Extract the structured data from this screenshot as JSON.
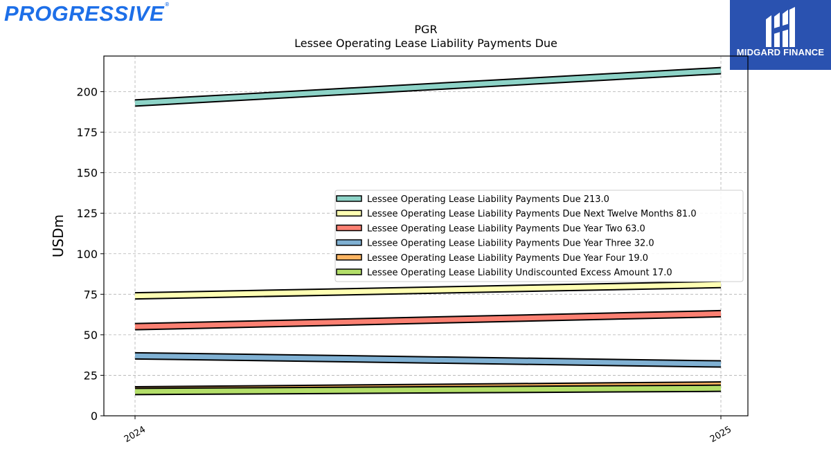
{
  "brand_left": {
    "name": "PROGRESSIVE",
    "mark": "®"
  },
  "brand_right": {
    "name": "MIDGARD FINANCE",
    "color": "#2a52b0"
  },
  "chart_data": {
    "type": "line",
    "title": "PGR",
    "subtitle": "Lessee Operating Lease Liability Payments Due",
    "ylabel": "USDm",
    "xlabel": "",
    "categories": [
      "2024",
      "2025"
    ],
    "ylim": [
      0,
      222
    ],
    "yticks": [
      0,
      25,
      50,
      75,
      100,
      125,
      150,
      175,
      200
    ],
    "grid": true,
    "legend_position": "center-right",
    "series": [
      {
        "name": "Lessee Operating Lease Liability Payments Due",
        "label": "Lessee Operating Lease Liability Payments Due  213.0",
        "values": [
          193.0,
          213.0
        ],
        "color": "#8dd3c7"
      },
      {
        "name": "Lessee Operating Lease Liability Payments Due Next Twelve Months",
        "label": "Lessee Operating Lease Liability Payments Due Next Twelve Months  81.0",
        "values": [
          74.0,
          81.0
        ],
        "color": "#ffffb3"
      },
      {
        "name": "Lessee Operating Lease Liability Payments Due Year Two",
        "label": "Lessee Operating Lease Liability Payments Due Year Two  63.0",
        "values": [
          55.0,
          63.0
        ],
        "color": "#fb8072"
      },
      {
        "name": "Lessee Operating Lease Liability Payments Due Year Three",
        "label": "Lessee Operating Lease Liability Payments Due Year Three  32.0",
        "values": [
          37.0,
          32.0
        ],
        "color": "#80b1d3"
      },
      {
        "name": "Lessee Operating Lease Liability Payments Due Year Four",
        "label": "Lessee Operating Lease Liability Payments Due Year Four  19.0",
        "values": [
          16.0,
          19.0
        ],
        "color": "#fdb462"
      },
      {
        "name": "Lessee Operating Lease Liability Undiscounted Excess Amount",
        "label": "Lessee Operating Lease Liability Undiscounted Excess Amount  17.0",
        "values": [
          15.0,
          17.0
        ],
        "color": "#b3de69"
      }
    ]
  }
}
